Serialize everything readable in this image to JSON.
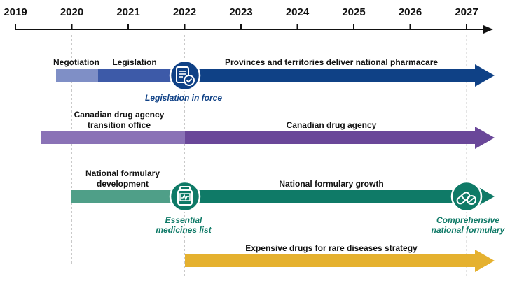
{
  "timeline": {
    "years": [
      "2019",
      "2020",
      "2021",
      "2022",
      "2023",
      "2024",
      "2025",
      "2026",
      "2027"
    ]
  },
  "rows": {
    "pharmacare": {
      "negotiation": "Negotiation",
      "legislation": "Legislation",
      "deliver": "Provinces and territories deliver national pharmacare",
      "milestone": "Legislation in force",
      "milestone_icon": "document-check-icon",
      "color": "#0f4186"
    },
    "agency": {
      "transition_line1": "Canadian drug agency",
      "transition_line2": "transition office",
      "agency": "Canadian drug agency",
      "color": "#6a4799"
    },
    "formulary": {
      "development_line1": "National formulary",
      "development_line2": "development",
      "growth": "National formulary growth",
      "essential_line1": "Essential",
      "essential_line2": "medicines list",
      "essential_icon": "medicine-bottle-icon",
      "comprehensive_line1": "Comprehensive",
      "comprehensive_line2": "national formulary",
      "comprehensive_icon": "pill-capsule-icon",
      "color": "#0f7a67"
    },
    "rare": {
      "strategy": "Expensive drugs for rare diseases strategy",
      "color": "#e5b12f"
    }
  }
}
